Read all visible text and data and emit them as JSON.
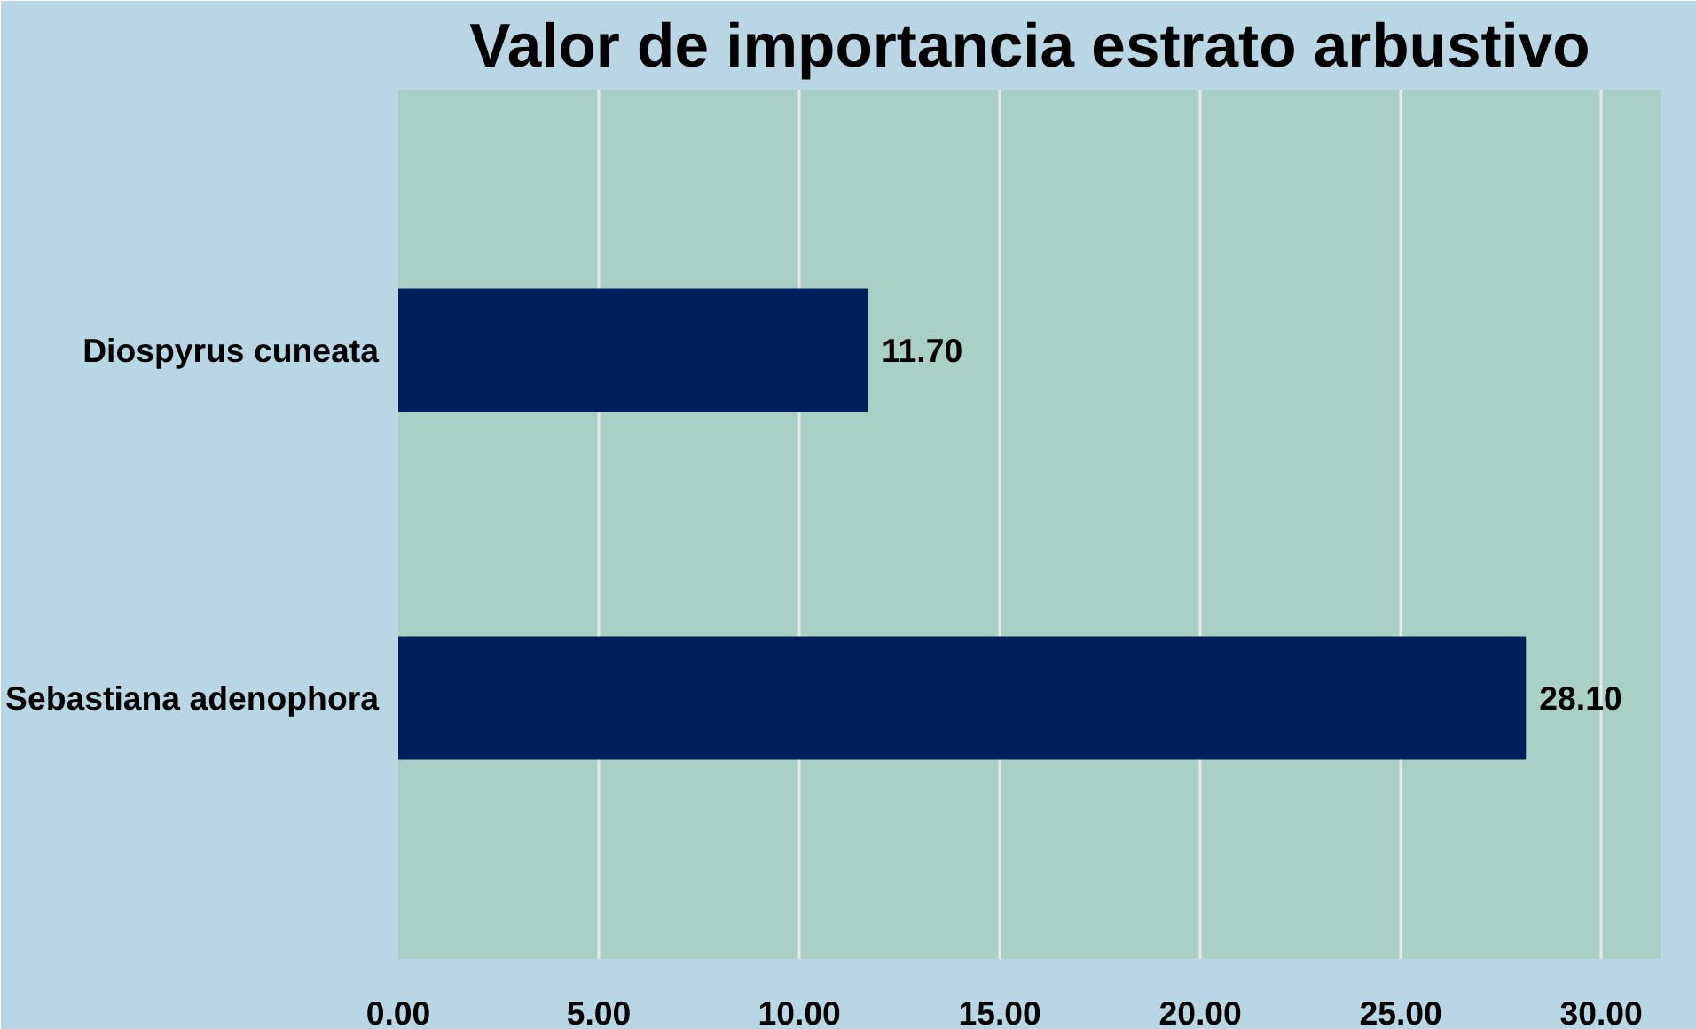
{
  "chart_data": {
    "type": "bar",
    "orientation": "horizontal",
    "title": "Valor de importancia estrato arbustivo",
    "categories": [
      "Diospyrus cuneata",
      "Sebastiana adenophora"
    ],
    "values": [
      11.7,
      28.1
    ],
    "value_labels": [
      "11.70",
      "28.10"
    ],
    "color": "#001f5c",
    "xlim": [
      0,
      31.5
    ],
    "xticks": [
      {
        "value": 0,
        "label": "0.00"
      },
      {
        "value": 5,
        "label": "5.00"
      },
      {
        "value": 10,
        "label": "10.00"
      },
      {
        "value": 15,
        "label": "15.00"
      },
      {
        "value": 20,
        "label": "20.00"
      },
      {
        "value": 25,
        "label": "25.00"
      },
      {
        "value": 30,
        "label": "30.00"
      }
    ],
    "grid": "x"
  }
}
